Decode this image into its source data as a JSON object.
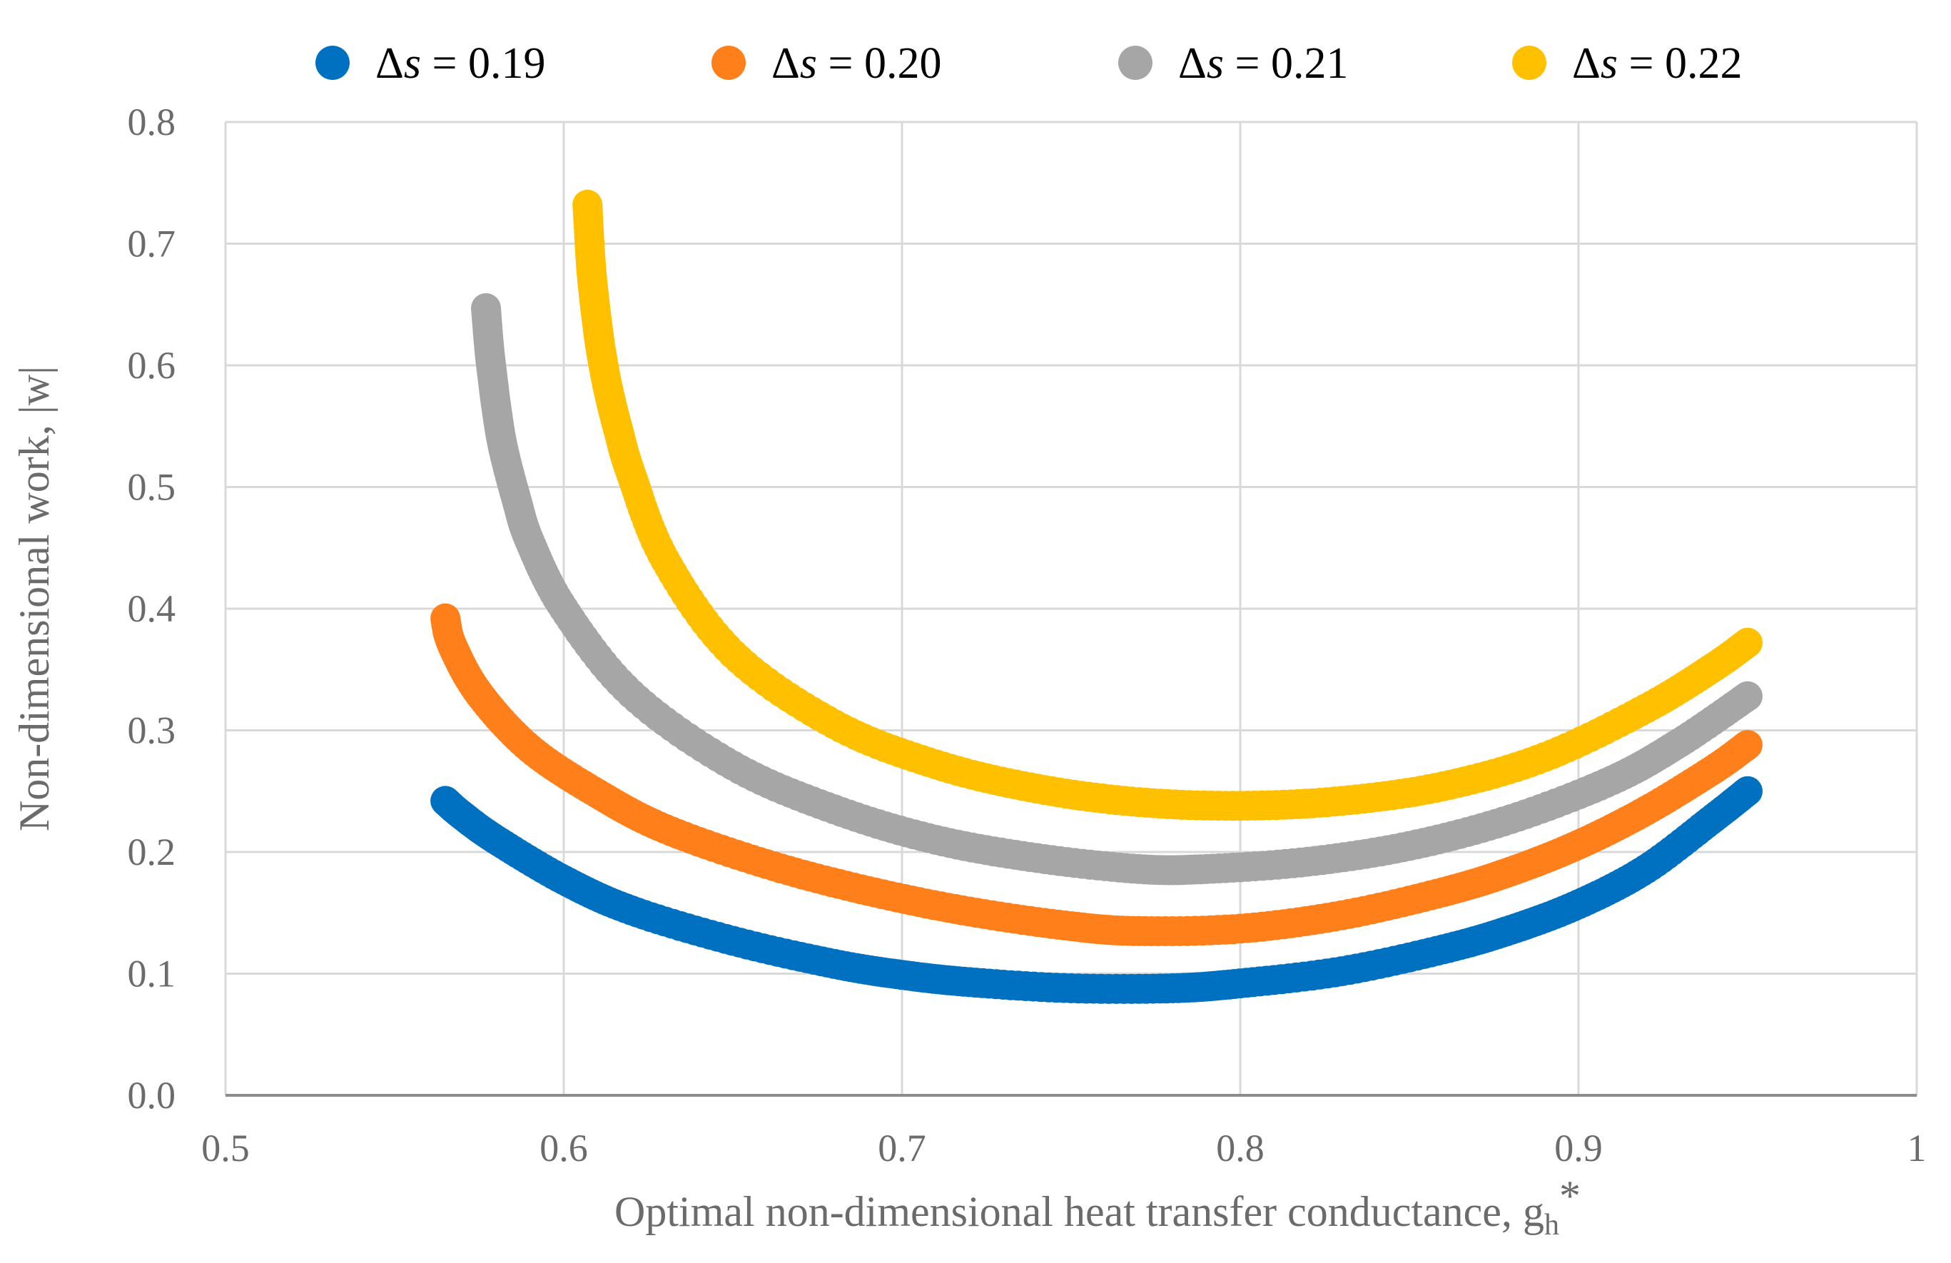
{
  "chart_data": {
    "type": "scatter",
    "xlabel": "Optimal non-dimensional heat transfer conductance, g",
    "xlabel_sub": "h",
    "xlabel_sup": "*",
    "ylabel": "Non-dimensional work, |w|",
    "xlim": [
      0.5,
      1.0
    ],
    "ylim": [
      0.0,
      0.8
    ],
    "x_ticks": [
      "0.5",
      "0.6",
      "0.7",
      "0.8",
      "0.9",
      "1"
    ],
    "y_ticks": [
      "0.0",
      "0.1",
      "0.2",
      "0.3",
      "0.4",
      "0.5",
      "0.6",
      "0.7",
      "0.8"
    ],
    "grid": true,
    "legend_position": "top",
    "legend_symbol": "Δ",
    "legend_var": "s",
    "series": [
      {
        "name": "Δs = 0.19",
        "legend_value": " = 0.19",
        "color": "#0070c0",
        "x": [
          0.565,
          0.57,
          0.58,
          0.6,
          0.62,
          0.65,
          0.68,
          0.7,
          0.72,
          0.75,
          0.78,
          0.8,
          0.83,
          0.86,
          0.88,
          0.9,
          0.92,
          0.94,
          0.95
        ],
        "y": [
          0.242,
          0.23,
          0.21,
          0.177,
          0.152,
          0.127,
          0.108,
          0.099,
          0.093,
          0.088,
          0.088,
          0.092,
          0.102,
          0.12,
          0.136,
          0.157,
          0.186,
          0.228,
          0.25
        ]
      },
      {
        "name": "Δs = 0.20",
        "legend_value": " = 0.20",
        "color": "#ff7f1a",
        "x": [
          0.565,
          0.567,
          0.575,
          0.59,
          0.61,
          0.63,
          0.66,
          0.69,
          0.72,
          0.75,
          0.77,
          0.8,
          0.83,
          0.86,
          0.88,
          0.9,
          0.92,
          0.94,
          0.95
        ],
        "y": [
          0.392,
          0.37,
          0.33,
          0.285,
          0.248,
          0.219,
          0.19,
          0.168,
          0.151,
          0.139,
          0.135,
          0.137,
          0.148,
          0.167,
          0.184,
          0.206,
          0.234,
          0.268,
          0.288
        ]
      },
      {
        "name": "Δs = 0.21",
        "legend_value": " = 0.21",
        "color": "#a6a6a6",
        "x": [
          0.577,
          0.578,
          0.579,
          0.58,
          0.582,
          0.586,
          0.59,
          0.6,
          0.62,
          0.65,
          0.68,
          0.71,
          0.74,
          0.77,
          0.79,
          0.82,
          0.85,
          0.88,
          0.91,
          0.93,
          0.95
        ],
        "y": [
          0.647,
          0.613,
          0.589,
          0.567,
          0.533,
          0.49,
          0.455,
          0.4,
          0.33,
          0.271,
          0.235,
          0.21,
          0.195,
          0.186,
          0.186,
          0.192,
          0.205,
          0.227,
          0.259,
          0.29,
          0.328
        ]
      },
      {
        "name": "Δs = 0.22",
        "legend_value": " = 0.22",
        "color": "#ffc000",
        "x": [
          0.607,
          0.608,
          0.609,
          0.61,
          0.611,
          0.613,
          0.616,
          0.62,
          0.63,
          0.65,
          0.68,
          0.71,
          0.74,
          0.77,
          0.8,
          0.83,
          0.86,
          0.89,
          0.92,
          0.94,
          0.95
        ],
        "y": [
          0.732,
          0.684,
          0.655,
          0.632,
          0.612,
          0.582,
          0.548,
          0.51,
          0.44,
          0.363,
          0.305,
          0.272,
          0.252,
          0.241,
          0.238,
          0.242,
          0.254,
          0.278,
          0.318,
          0.352,
          0.372
        ]
      }
    ]
  }
}
